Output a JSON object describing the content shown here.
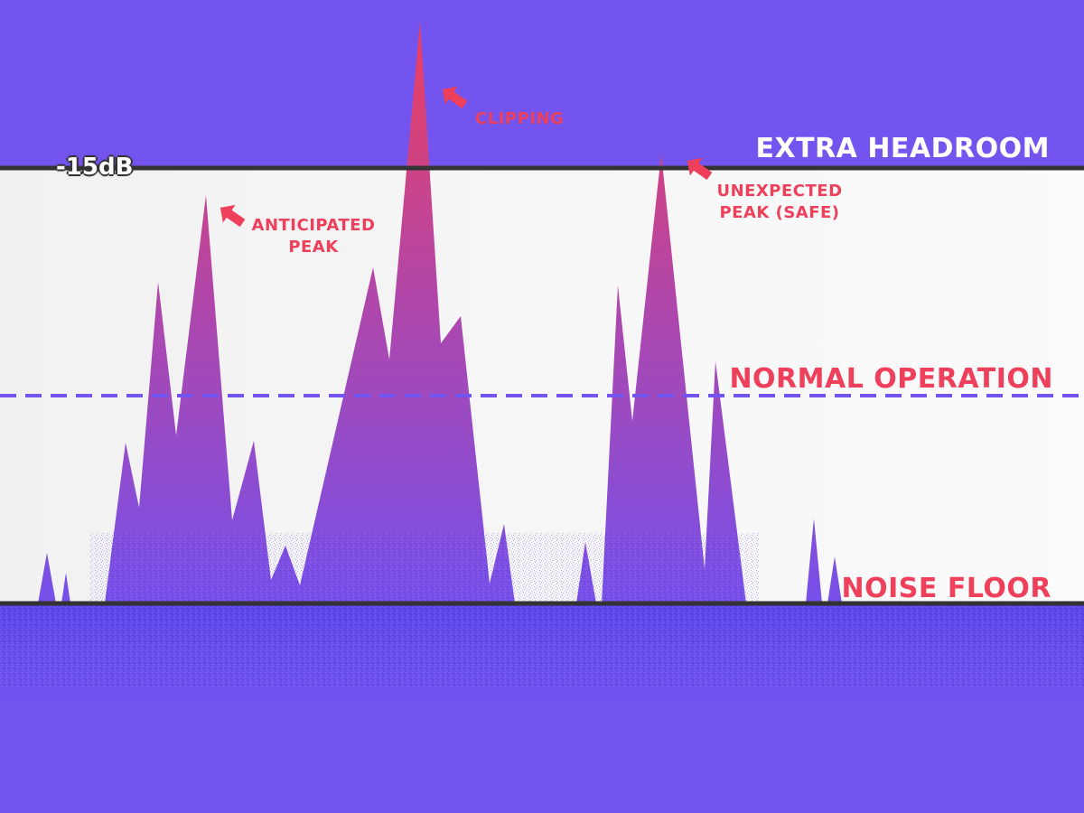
{
  "colors": {
    "background": "#7354ee",
    "band": "#f4f4f4",
    "peak_top": "#ee3f5b",
    "peak_base": "#7a4fe8",
    "threshold_line": "#333333",
    "dashed_line": "#7354ee",
    "band_label_white": "#ffffff",
    "band_label_red": "#ee3f5b"
  },
  "levels": {
    "top_marker": "-15dB",
    "extra_headroom": "EXTRA HEADROOM",
    "normal_operation": "NORMAL OPERATION",
    "noise_floor": "NOISE FLOOR"
  },
  "annotations": {
    "clipping": "CLIPPING",
    "anticipated_peak_line1": "ANTICIPATED",
    "anticipated_peak_line2": "PEAK",
    "unexpected_peak_line1": "UNEXPECTED",
    "unexpected_peak_line2": "PEAK (SAFE)"
  },
  "icons": [
    "arrow-pointer-icon"
  ]
}
